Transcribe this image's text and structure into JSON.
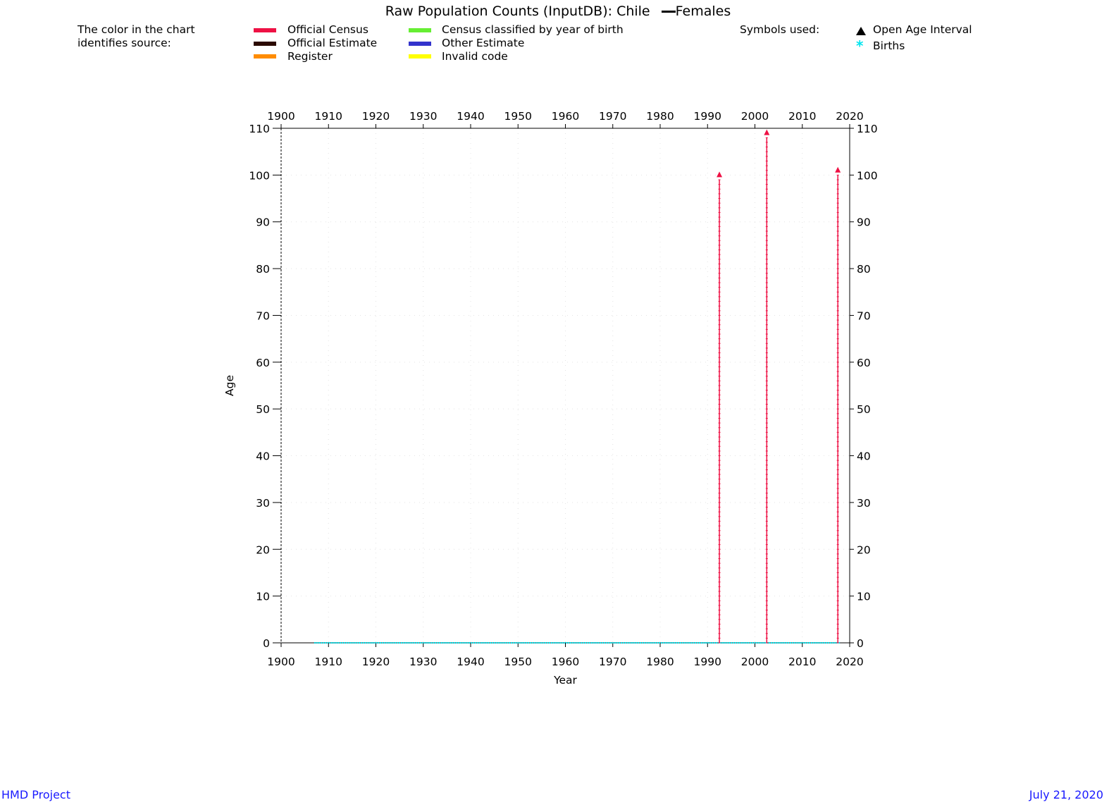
{
  "title_main": "Raw Population Counts (InputDB): Chile",
  "title_series": "Females",
  "legend": {
    "intro_line1": "The color in the chart",
    "intro_line2": "identifies source:",
    "items": [
      {
        "label": "Official Census",
        "color": "#ee1144"
      },
      {
        "label": "Official Estimate",
        "color": "#2b0a00"
      },
      {
        "label": "Register",
        "color": "#ff8c00"
      },
      {
        "label": "Census classified by year of birth",
        "color": "#66ee33"
      },
      {
        "label": "Other Estimate",
        "color": "#3333cc"
      },
      {
        "label": "Invalid code",
        "color": "#ffff00"
      }
    ],
    "symbols_heading": "Symbols used:",
    "symbol_open_age": "Open Age Interval",
    "symbol_births": "Births"
  },
  "footer": {
    "left": "HMD Project",
    "right": "July 21, 2020"
  },
  "chart_data": {
    "type": "scatter",
    "xlabel": "Year",
    "ylabel": "Age",
    "xlim": [
      1900,
      2020
    ],
    "ylim": [
      0,
      110
    ],
    "x_ticks": [
      1900,
      1910,
      1920,
      1930,
      1940,
      1950,
      1960,
      1970,
      1980,
      1990,
      2000,
      2010,
      2020
    ],
    "y_ticks": [
      0,
      10,
      20,
      30,
      40,
      50,
      60,
      70,
      80,
      90,
      100,
      110
    ],
    "grid": true,
    "series": [
      {
        "name": "Official Census",
        "color": "#ee1144",
        "points": [
          {
            "x": 1992.5,
            "age_from": 0,
            "age_to": 99,
            "open_age": 100
          },
          {
            "x": 2002.5,
            "age_from": 0,
            "age_to": 108,
            "open_age": 109
          },
          {
            "x": 2017.5,
            "age_from": 0,
            "age_to": 100,
            "open_age": 101
          }
        ]
      },
      {
        "name": "Births",
        "color": "#00e5ee",
        "x_from": 1907,
        "x_to": 2018,
        "age": 0
      }
    ]
  }
}
